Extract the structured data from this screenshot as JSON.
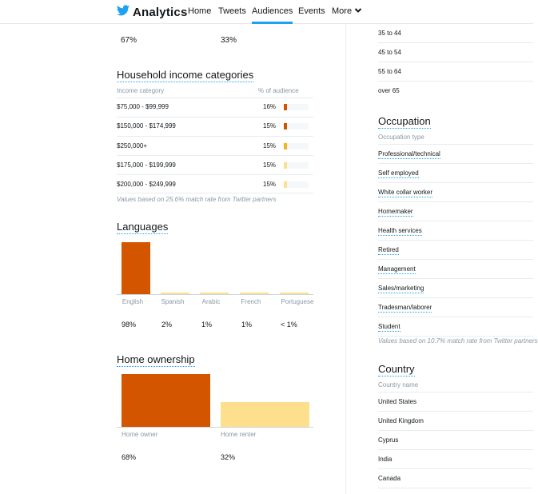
{
  "nav": {
    "brand": "Analytics",
    "items": [
      {
        "label": "Home",
        "active": false
      },
      {
        "label": "Tweets",
        "active": false
      },
      {
        "label": "Audiences",
        "active": true
      },
      {
        "label": "Events",
        "active": false
      },
      {
        "label": "More",
        "active": false
      }
    ]
  },
  "gender_partial": {
    "left_pct": "67%",
    "right_pct": "33%"
  },
  "income": {
    "title": "Household income categories",
    "col_category": "Income category",
    "col_audience": "% of audience",
    "rows": [
      {
        "label": "$75,000 - $99,999",
        "pct": "16%",
        "color": "#d45500"
      },
      {
        "label": "$150,000 - $174,999",
        "pct": "15%",
        "color": "#d45500"
      },
      {
        "label": "$250,000+",
        "pct": "15%",
        "color": "#f5b31d"
      },
      {
        "label": "$175,000 - $199,999",
        "pct": "15%",
        "color": "#fddf8e"
      },
      {
        "label": "$200,000 - $249,999",
        "pct": "15%",
        "color": "#fddf8e"
      }
    ],
    "note": "Values based on 25.6% match rate from Twitter partners"
  },
  "languages": {
    "title": "Languages",
    "chart_data": {
      "type": "bar",
      "categories": [
        "English",
        "Spanish",
        "Arabic",
        "French",
        "Portuguese"
      ],
      "values": [
        98,
        2,
        1,
        1,
        0.5
      ],
      "value_labels": [
        "98%",
        "2%",
        "1%",
        "1%",
        "< 1%"
      ],
      "colors": [
        "#d45500",
        "#fddf8e",
        "#fddf8e",
        "#fddf8e",
        "#fddf8e"
      ],
      "ylim": [
        0,
        100
      ]
    }
  },
  "home_ownership": {
    "title": "Home ownership",
    "chart_data": {
      "type": "bar",
      "categories": [
        "Home owner",
        "Home renter"
      ],
      "values": [
        68,
        32
      ],
      "value_labels": [
        "68%",
        "32%"
      ],
      "colors": [
        "#d45500",
        "#fddf8e"
      ],
      "ylim": [
        0,
        68
      ]
    }
  },
  "age_partial": {
    "rows": [
      "35 to 44",
      "45 to 54",
      "55 to 64",
      "over 65"
    ]
  },
  "occupation": {
    "title": "Occupation",
    "col_type": "Occupation type",
    "rows": [
      "Professional/technical",
      "Self employed",
      "White collar worker",
      "Homemaker",
      "Health services",
      "Retired",
      "Management",
      "Sales/marketing",
      "Tradesman/laborer",
      "Student"
    ],
    "note": "Values based on 10.7% match rate from Twitter partners"
  },
  "country": {
    "title": "Country",
    "col_name": "Country name",
    "rows": [
      "United States",
      "United Kingdom",
      "Cyprus",
      "India",
      "Canada"
    ]
  },
  "colors": {
    "accent": "#1da1f2",
    "primary_bar": "#d45500",
    "secondary_bar": "#fddf8e",
    "mid_bar": "#f5b31d"
  }
}
